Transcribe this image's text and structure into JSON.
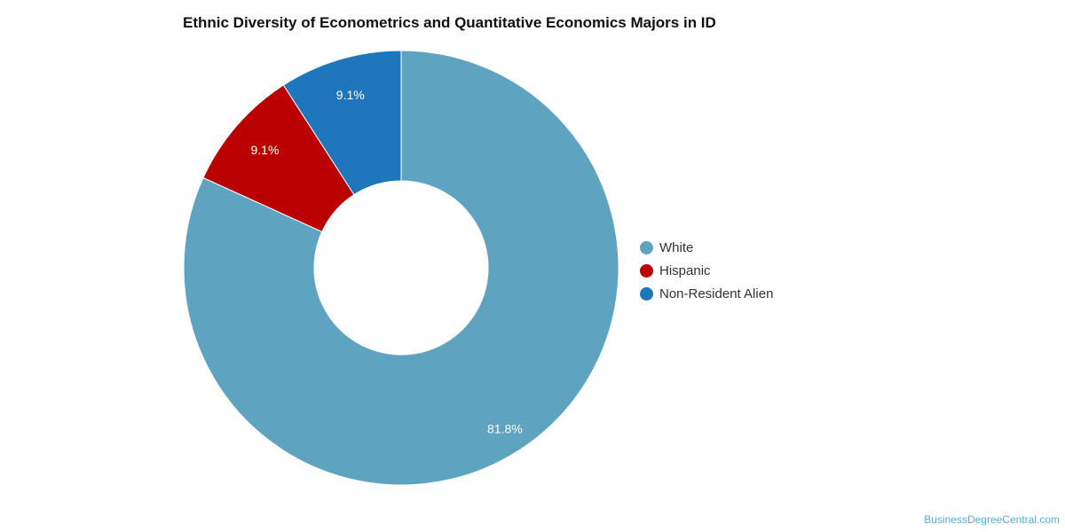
{
  "chart_data": {
    "type": "pie",
    "donut": true,
    "title": "Ethnic Diversity of Econometrics and Quantitative Economics Majors in ID",
    "categories": [
      "White",
      "Hispanic",
      "Non-Resident Alien"
    ],
    "values": [
      81.8,
      9.1,
      9.1
    ],
    "labels": [
      "81.8%",
      "9.1%",
      "9.1%"
    ],
    "colors": [
      "#5ea3bf",
      "#bb0000",
      "#1f77bb"
    ],
    "legend_position": "right"
  },
  "source": "BusinessDegreeCentral.com"
}
